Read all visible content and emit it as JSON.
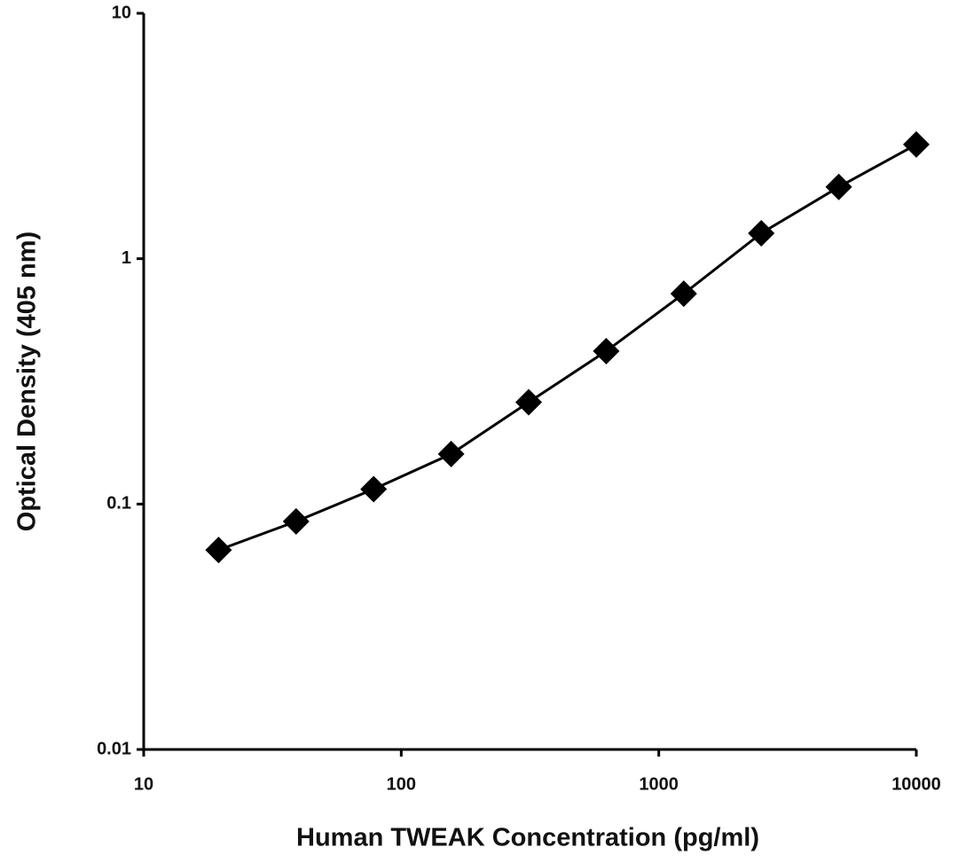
{
  "chart_data": {
    "type": "line",
    "x_label": "Human TWEAK Concentration (pg/ml)",
    "y_label": "Optical Density (405 nm)",
    "x": [
      19.53,
      39.06,
      78.125,
      156.25,
      312.5,
      625,
      1250,
      2500,
      5000,
      10000
    ],
    "series": [
      {
        "color": "#000000",
        "values": [
          0.065,
          0.085,
          0.115,
          0.16,
          0.26,
          0.42,
          0.72,
          1.27,
          1.96,
          2.92
        ]
      }
    ],
    "xscale": "log",
    "yscale": "log",
    "xlim": [
      10,
      10000
    ],
    "xticks": [
      10,
      100,
      1000,
      10000
    ],
    "ylim": [
      0.01,
      10
    ],
    "yticks": [
      0.01,
      0.1,
      1,
      10
    ],
    "marker": "diamond"
  }
}
